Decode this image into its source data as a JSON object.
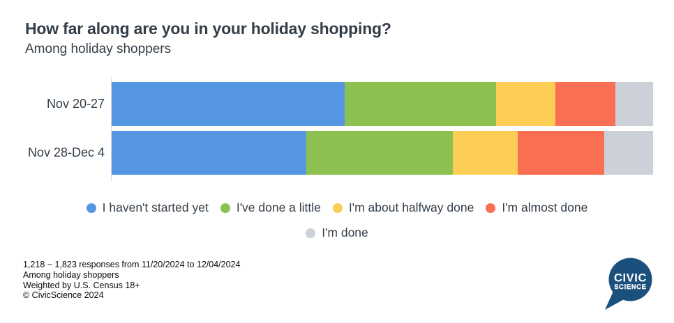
{
  "header": {
    "title": "How far along are you in your holiday shopping?",
    "subtitle": "Among holiday shoppers"
  },
  "chart_data": {
    "type": "bar",
    "stacked": true,
    "orientation": "horizontal",
    "title": "How far along are you in your holiday shopping?",
    "subtitle": "Among holiday shoppers",
    "categories": [
      "Nov 20-27",
      "Nov 28-Dec 4"
    ],
    "series": [
      {
        "name": "I haven't started yet",
        "color": "#5596E3",
        "values": [
          43,
          36
        ]
      },
      {
        "name": "I've done a little",
        "color": "#8CC152",
        "values": [
          28,
          27
        ]
      },
      {
        "name": "I'm about halfway done",
        "color": "#FDCE55",
        "values": [
          11,
          12
        ]
      },
      {
        "name": "I'm almost done",
        "color": "#FA6E51",
        "values": [
          11,
          16
        ]
      },
      {
        "name": "I'm done",
        "color": "#CCD1D9",
        "values": [
          7,
          9
        ]
      }
    ],
    "value_unit": "percent",
    "xlim": [
      0,
      100
    ],
    "grid": false,
    "legend_position": "bottom",
    "legend_rows": [
      [
        0,
        1,
        2,
        3
      ],
      [
        4
      ]
    ]
  },
  "footer": {
    "lines": [
      "1,218 − 1,823 responses from 11/20/2024 to 12/04/2024",
      "Among holiday shoppers",
      "Weighted by U.S. Census 18+",
      "© CivicScience 2024"
    ]
  },
  "logo": {
    "line1": "CIVIC",
    "line2": "SCIENCE",
    "color": "#1B4F7C"
  },
  "colors": {
    "text": "#333E48",
    "axis": "#DCDCDC",
    "background": "#FFFFFF"
  }
}
